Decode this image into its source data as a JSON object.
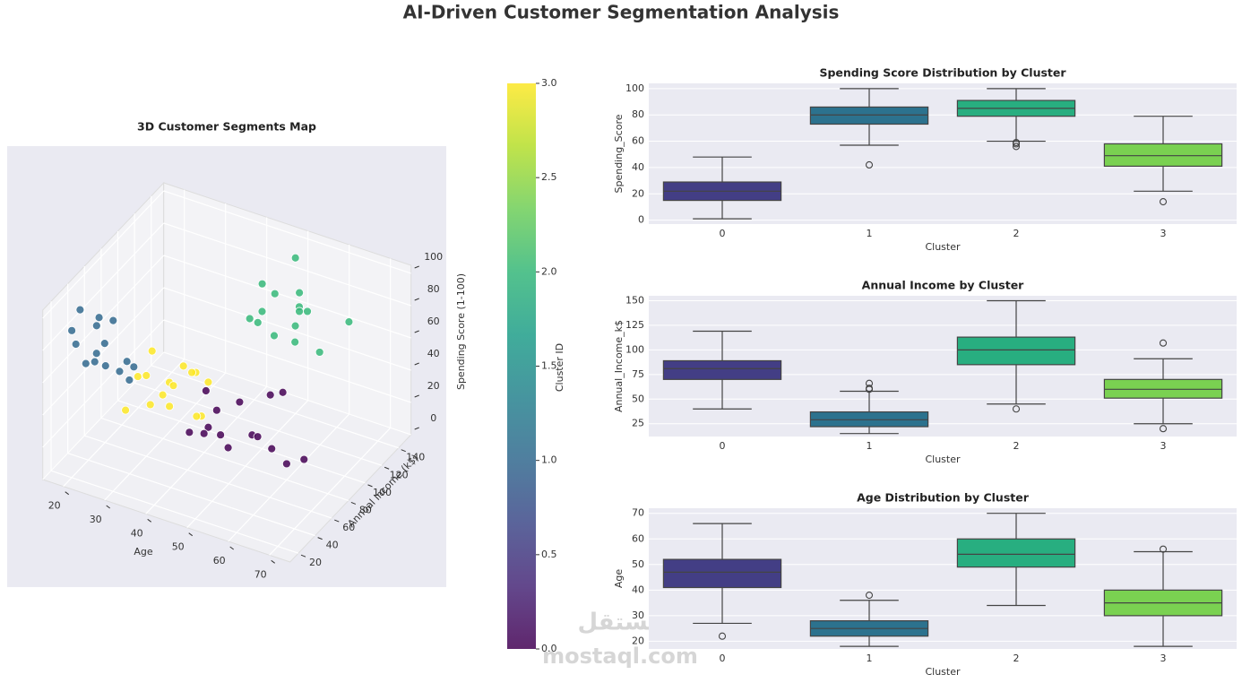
{
  "title": "AI-Driven Customer Segmentation Analysis",
  "watermark": [
    "مستقل",
    "mostaql.com"
  ],
  "chart_data": [
    {
      "type": "scatter3d",
      "title": "3D Customer Segments Map",
      "xlabel": "Age",
      "ylabel": "Annual Income (k$)",
      "zlabel": "Spending Score (1-100)",
      "xlim": [
        15,
        75
      ],
      "ylim": [
        10,
        155
      ],
      "zlim": [
        0,
        105
      ],
      "xticks": [
        20,
        30,
        40,
        50,
        60,
        70
      ],
      "yticks": [
        20,
        40,
        60,
        80,
        100,
        120,
        140
      ],
      "zticks": [
        0,
        20,
        40,
        60,
        80,
        100
      ],
      "series": [
        {
          "color": "#440154",
          "x": [
            42,
            50,
            55,
            38,
            60,
            47,
            52,
            45,
            58,
            40,
            49,
            63,
            44,
            53,
            36
          ],
          "y": [
            75,
            88,
            70,
            92,
            80,
            65,
            100,
            84,
            72,
            95,
            78,
            86,
            60,
            110,
            82
          ],
          "z": [
            20,
            15,
            28,
            30,
            10,
            25,
            35,
            5,
            22,
            18,
            40,
            12,
            26,
            32,
            8
          ]
        },
        {
          "color": "#31688e",
          "x": [
            20,
            24,
            28,
            22,
            30,
            19,
            26,
            33,
            21,
            25,
            27,
            23,
            35,
            18,
            29
          ],
          "y": [
            25,
            30,
            20,
            40,
            28,
            35,
            18,
            22,
            32,
            45,
            26,
            38,
            15,
            30,
            50
          ],
          "z": [
            80,
            75,
            90,
            85,
            70,
            95,
            78,
            82,
            65,
            88,
            72,
            92,
            76,
            84,
            60
          ]
        },
        {
          "color": "#35b779",
          "x": [
            50,
            55,
            60,
            48,
            65,
            52,
            58,
            45,
            62,
            56,
            68,
            53,
            47,
            59,
            51
          ],
          "y": [
            100,
            120,
            90,
            110,
            130,
            85,
            105,
            140,
            95,
            115,
            80,
            125,
            100,
            70,
            135
          ],
          "z": [
            85,
            90,
            80,
            95,
            75,
            88,
            92,
            70,
            98,
            82,
            86,
            65,
            78,
            94,
            100
          ]
        },
        {
          "color": "#fde725",
          "x": [
            30,
            35,
            40,
            33,
            38,
            28,
            42,
            36,
            31,
            45,
            34,
            39,
            37,
            32,
            43
          ],
          "y": [
            60,
            55,
            70,
            50,
            65,
            45,
            75,
            58,
            62,
            52,
            68,
            48,
            80,
            40,
            56
          ],
          "z": [
            50,
            45,
            55,
            40,
            60,
            35,
            48,
            52,
            65,
            42,
            30,
            58,
            47,
            62,
            38
          ]
        }
      ]
    },
    {
      "type": "colorbar",
      "label": "Cluster ID",
      "ylim": [
        0,
        3
      ],
      "yticks": [
        {
          "value": 0,
          "label": "0.0"
        },
        {
          "value": 0.5,
          "label": "0.5"
        },
        {
          "value": 1,
          "label": "1.0"
        },
        {
          "value": 1.5,
          "label": "1.5"
        },
        {
          "value": 2,
          "label": "2.0"
        },
        {
          "value": 2.5,
          "label": "2.5"
        },
        {
          "value": 3,
          "label": "3.0"
        }
      ],
      "colors": [
        "#440154",
        "#482878",
        "#3e4989",
        "#31688e",
        "#26828e",
        "#1f9e89",
        "#35b779",
        "#6ece58",
        "#b5de2b",
        "#fde725"
      ]
    },
    {
      "type": "box",
      "title": "Spending Score Distribution by Cluster",
      "xlabel": "Cluster",
      "ylabel": "Spending_Score",
      "grid": true,
      "categories": [
        "0",
        "1",
        "2",
        "3"
      ],
      "colors": [
        "#433e85",
        "#2c728e",
        "#28ae80",
        "#7ad151"
      ],
      "whislo": [
        1,
        57,
        60,
        22
      ],
      "q1": [
        15,
        73,
        79,
        41
      ],
      "med": [
        22,
        80,
        85,
        49
      ],
      "q3": [
        29,
        86,
        91,
        58
      ],
      "whishi": [
        48,
        100,
        100,
        79
      ],
      "outliers": [
        [],
        [
          42
        ],
        [
          56,
          58,
          59
        ],
        [
          14
        ]
      ],
      "ylim": [
        -3,
        104
      ],
      "yticks": [
        0,
        20,
        40,
        60,
        80,
        100
      ]
    },
    {
      "type": "box",
      "title": "Annual Income by Cluster",
      "xlabel": "Cluster",
      "ylabel": "Annual_Income_k$",
      "grid": true,
      "categories": [
        "0",
        "1",
        "2",
        "3"
      ],
      "colors": [
        "#433e85",
        "#2c728e",
        "#28ae80",
        "#7ad151"
      ],
      "whislo": [
        40,
        15,
        45,
        25
      ],
      "q1": [
        70,
        22,
        85,
        51
      ],
      "med": [
        81,
        29,
        100,
        60
      ],
      "q3": [
        89,
        37,
        113,
        70
      ],
      "whishi": [
        119,
        58,
        150,
        91
      ],
      "outliers": [
        [],
        [
          60,
          61,
          66
        ],
        [
          40
        ],
        [
          20,
          107
        ]
      ],
      "ylim": [
        12,
        155
      ],
      "yticks": [
        25,
        50,
        75,
        100,
        125,
        150
      ]
    },
    {
      "type": "box",
      "title": "Age Distribution by Cluster",
      "xlabel": "Cluster",
      "ylabel": "Age",
      "grid": true,
      "categories": [
        "0",
        "1",
        "2",
        "3"
      ],
      "colors": [
        "#433e85",
        "#2c728e",
        "#28ae80",
        "#7ad151"
      ],
      "whislo": [
        27,
        18,
        34,
        18
      ],
      "q1": [
        41,
        22,
        49,
        30
      ],
      "med": [
        47,
        25,
        54,
        35
      ],
      "q3": [
        52,
        28,
        60,
        40
      ],
      "whishi": [
        66,
        36,
        70,
        55
      ],
      "outliers": [
        [
          22
        ],
        [
          38
        ],
        [],
        [
          56
        ]
      ],
      "ylim": [
        17,
        72
      ],
      "yticks": [
        20,
        30,
        40,
        50,
        60,
        70
      ]
    }
  ]
}
